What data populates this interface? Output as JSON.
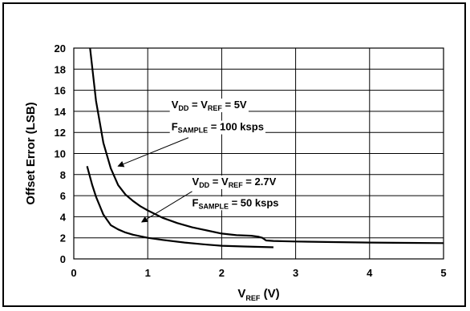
{
  "chart_data": {
    "type": "line",
    "xlabel_main": "V",
    "xlabel_sub": "REF",
    "xlabel_unit": " (V)",
    "ylabel": "Offset Error (LSB)",
    "xlim": [
      0,
      5
    ],
    "ylim": [
      0,
      20
    ],
    "x_ticks": [
      0,
      1,
      2,
      3,
      4,
      5
    ],
    "y_ticks": [
      0,
      2,
      4,
      6,
      8,
      10,
      12,
      14,
      16,
      18,
      20
    ],
    "grid": true,
    "series": [
      {
        "x": [
          0.22,
          0.3,
          0.4,
          0.5,
          0.6,
          0.7,
          0.8,
          0.9,
          1.0,
          1.2,
          1.4,
          1.6,
          1.8,
          2.0,
          2.2,
          2.4,
          2.5,
          2.55,
          2.6,
          2.7,
          3.0,
          3.5,
          4.0,
          4.5,
          5.0
        ],
        "y": [
          20.0,
          15.0,
          11.0,
          8.6,
          7.0,
          6.1,
          5.5,
          5.0,
          4.6,
          3.9,
          3.4,
          3.0,
          2.7,
          2.4,
          2.25,
          2.2,
          2.1,
          2.0,
          1.75,
          1.7,
          1.65,
          1.6,
          1.55,
          1.52,
          1.5
        ]
      },
      {
        "x": [
          0.18,
          0.25,
          0.3,
          0.4,
          0.5,
          0.6,
          0.7,
          0.8,
          1.0,
          1.2,
          1.5,
          1.8,
          2.0,
          2.3,
          2.7
        ],
        "y": [
          8.8,
          7.0,
          5.9,
          4.2,
          3.2,
          2.8,
          2.5,
          2.3,
          2.0,
          1.8,
          1.55,
          1.35,
          1.25,
          1.18,
          1.1
        ]
      }
    ],
    "annotations": [
      {
        "line1": [
          "V",
          "DD",
          " = V",
          "REF",
          " = 5V"
        ],
        "line2": [
          "F",
          "SAMPLE",
          " = 100 ksps"
        ],
        "text_x": 1.32,
        "text_y1": 14.3,
        "text_y2": 12.2,
        "arrow_from": [
          1.55,
          11.5
        ],
        "arrow_to": [
          0.6,
          8.8
        ]
      },
      {
        "line1": [
          "V",
          "DD",
          " = V",
          "REF",
          " = 2.7V"
        ],
        "line2": [
          "F",
          "SAMPLE",
          " = 50 ksps"
        ],
        "text_x": 1.6,
        "text_y1": 7.0,
        "text_y2": 5.0,
        "arrow_from": [
          1.6,
          6.4
        ],
        "arrow_to": [
          0.92,
          3.5
        ]
      }
    ]
  }
}
